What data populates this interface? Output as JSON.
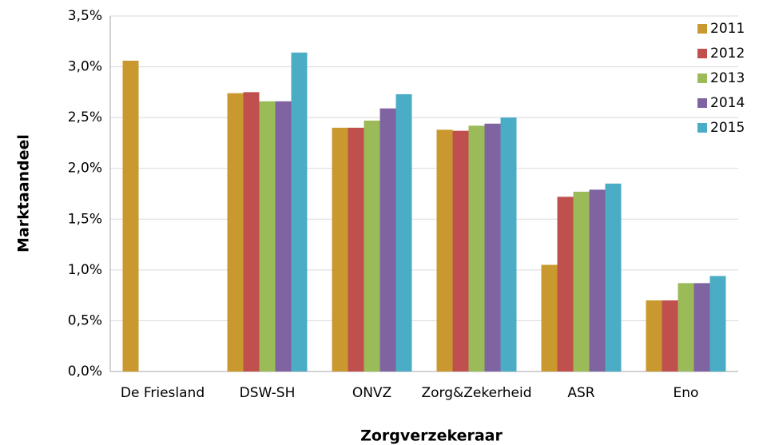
{
  "chart_data": {
    "type": "bar",
    "x_label": "Zorgverzekeraar",
    "y_label": "Marktaandeel",
    "categories": [
      "De Friesland",
      "DSW-SH",
      "ONVZ",
      "Zorg&Zekerheid",
      "ASR",
      "Eno"
    ],
    "series": [
      {
        "name": "2011",
        "color": "#c9992f",
        "values": [
          3.06,
          2.74,
          2.4,
          2.38,
          1.05,
          0.7
        ]
      },
      {
        "name": "2012",
        "color": "#c0504d",
        "values": [
          null,
          2.75,
          2.4,
          2.37,
          1.72,
          0.7
        ]
      },
      {
        "name": "2013",
        "color": "#9bbb59",
        "values": [
          null,
          2.66,
          2.47,
          2.42,
          1.77,
          0.87
        ]
      },
      {
        "name": "2014",
        "color": "#8064a2",
        "values": [
          null,
          2.66,
          2.59,
          2.44,
          1.79,
          0.87
        ]
      },
      {
        "name": "2015",
        "color": "#4bacc6",
        "values": [
          null,
          3.14,
          2.73,
          2.5,
          1.85,
          0.94
        ]
      }
    ],
    "ylim": [
      0,
      3.5
    ],
    "yticks": [
      {
        "value": 0,
        "label": "0,0%"
      },
      {
        "value": 0.5,
        "label": "0,5%"
      },
      {
        "value": 1,
        "label": "1,0%"
      },
      {
        "value": 1.5,
        "label": "1,5%"
      },
      {
        "value": 2,
        "label": "2,0%"
      },
      {
        "value": 2.5,
        "label": "2,5%"
      },
      {
        "value": 3,
        "label": "3,0%"
      },
      {
        "value": 3.5,
        "label": "3,5%"
      }
    ],
    "grid": true,
    "legend": "right"
  }
}
